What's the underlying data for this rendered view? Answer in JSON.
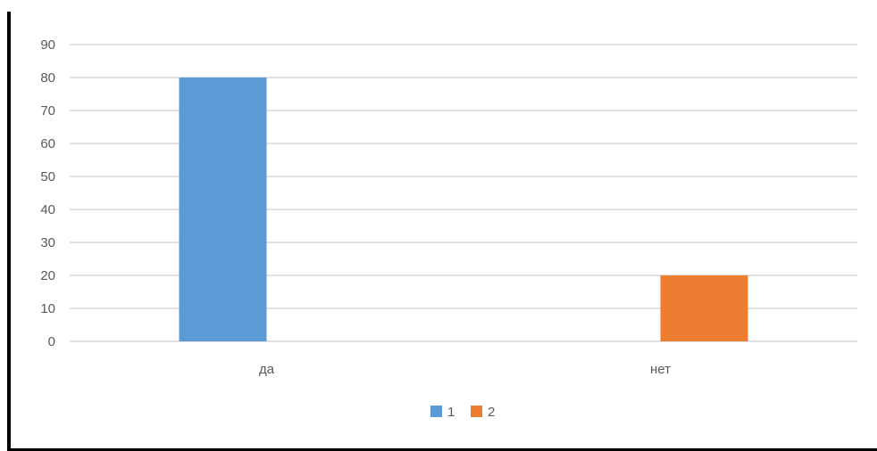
{
  "chart_data": {
    "type": "bar",
    "categories": [
      "да",
      "нет"
    ],
    "series": [
      {
        "name": "1",
        "values": [
          80,
          null
        ],
        "color": "#5b9bd5"
      },
      {
        "name": "2",
        "values": [
          null,
          20
        ],
        "color": "#ed7d31"
      }
    ],
    "title": "",
    "xlabel": "",
    "ylabel": "",
    "ylim": [
      0,
      90
    ],
    "yticks": [
      0,
      10,
      20,
      30,
      40,
      50,
      60,
      70,
      80,
      90
    ],
    "grid": true,
    "legend_position": "bottom",
    "gridline_color": "#d9d9d9",
    "label_color": "#595959"
  }
}
